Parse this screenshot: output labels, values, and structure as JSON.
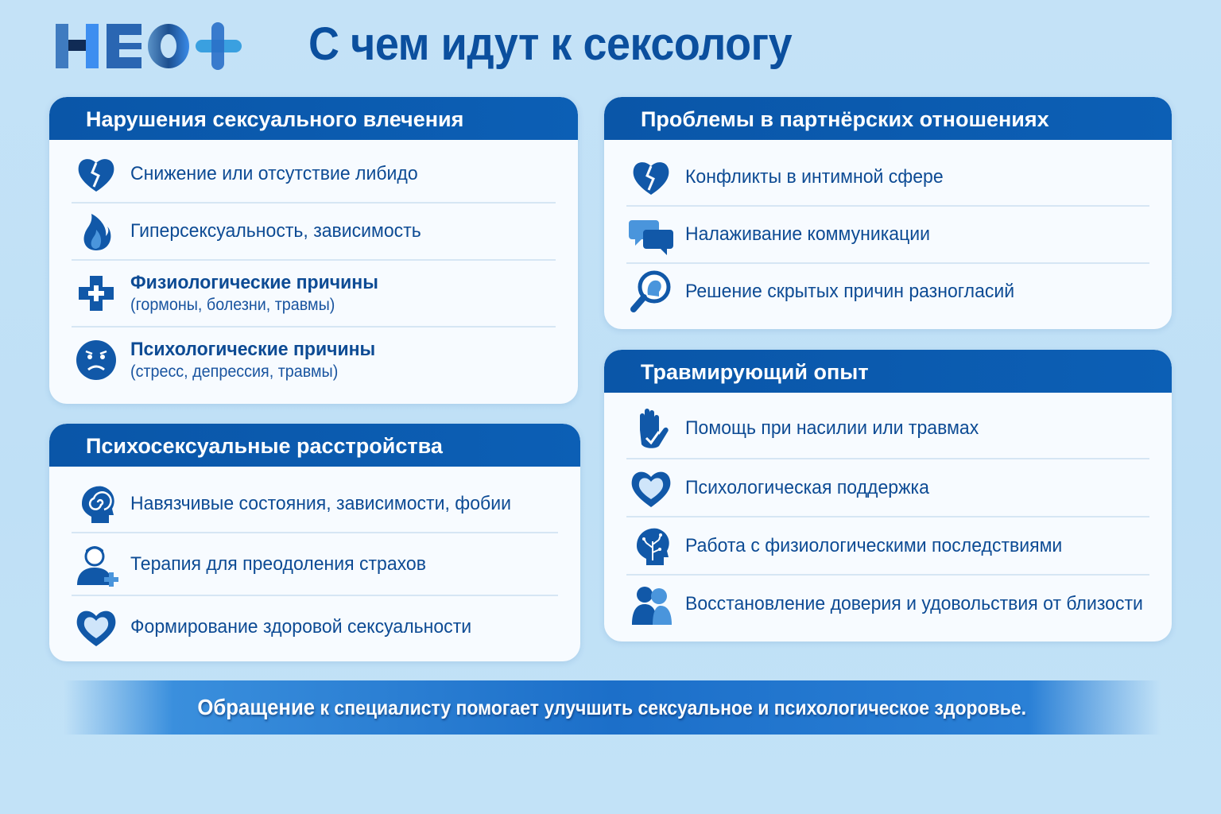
{
  "brand": {
    "logo_text": "НЕО+"
  },
  "title": "С чем идут к сексологу",
  "colors": {
    "primary": "#0a56a8",
    "text": "#0d4b94",
    "background": "#c4e2f7",
    "card": "#f7fbff"
  },
  "cards": [
    {
      "title": "Нарушения сексуального влечения",
      "items": [
        {
          "icon": "broken-heart-icon",
          "text": "Снижение или отсутствие либидо"
        },
        {
          "icon": "flame-icon",
          "text": "Гиперсексуальность, зависимость"
        },
        {
          "icon": "medical-cross-icon",
          "text": "Физиологические причины",
          "sub": "(гормоны, болезни, травмы)"
        },
        {
          "icon": "sad-face-icon",
          "text": "Психологические причины",
          "sub": "(стресс, депрессия, травмы)"
        }
      ]
    },
    {
      "title": "Психосексуальные расстройства",
      "items": [
        {
          "icon": "spiral-head-icon",
          "text": "Навязчивые состояния, зависимости, фобии"
        },
        {
          "icon": "person-plus-icon",
          "text": "Терапия для преодоления страхов"
        },
        {
          "icon": "heart-icon",
          "text": "Формирование здоровой сексуальности"
        }
      ]
    },
    {
      "title": "Проблемы в партнёрских отношениях",
      "items": [
        {
          "icon": "broken-heart-icon",
          "text": "Конфликты в интимной сфере"
        },
        {
          "icon": "chat-bubbles-icon",
          "text": "Налаживание коммуникации"
        },
        {
          "icon": "magnifier-head-icon",
          "text": "Решение скрытых причин разногласий"
        }
      ]
    },
    {
      "title": "Травмирующий опыт",
      "items": [
        {
          "icon": "hand-icon",
          "text": "Помощь при насилии или травмах"
        },
        {
          "icon": "heart-icon",
          "text": "Психологическая поддержка"
        },
        {
          "icon": "brain-tree-icon",
          "text": "Работа с физиологическими последствиями"
        },
        {
          "icon": "hug-icon",
          "text": "Восстановление доверия и удовольствия от близости"
        }
      ]
    }
  ],
  "footer": {
    "lead": "Обращение",
    "rest": " к специалисту помогает улучшить сексуальное и психологическое здоровье."
  }
}
